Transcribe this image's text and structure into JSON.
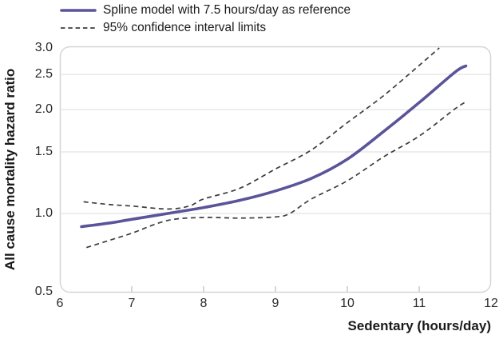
{
  "legend": {
    "items": [
      {
        "label": "Spline model with 7.5 hours/day as reference",
        "swatch": "solid-line"
      },
      {
        "label": "95% confidence interval limits",
        "swatch": "dashed-line"
      }
    ]
  },
  "colors": {
    "spline": "#5a5499",
    "ci": "#3d3d3d",
    "grid": "#e3e3e3",
    "border": "#d6d6d6",
    "tick": "#c9c9c9",
    "text": "#1a1a1a",
    "axis_text": "#2a2a2a",
    "background": "#ffffff"
  },
  "y_axis": {
    "title": "All cause mortality hazard ratio",
    "ticks": [
      "3.0",
      "2.5",
      "2.0",
      "1.5",
      "1.0",
      "0.5"
    ]
  },
  "x_axis": {
    "title": "Sedentary (hours/day)",
    "ticks": [
      "6",
      "7",
      "8",
      "9",
      "10",
      "11",
      "12"
    ]
  },
  "chart_data": {
    "type": "line",
    "title": "",
    "xlabel": "Sedentary (hours/day)",
    "ylabel": "All cause mortality hazard ratio",
    "xlim": [
      6,
      12
    ],
    "ylim": [
      0.5,
      3.0
    ],
    "x_ticks": [
      6,
      7,
      8,
      9,
      10,
      11,
      12
    ],
    "y_ticks": [
      3.0,
      2.5,
      2.0,
      1.5,
      1.0,
      0.5
    ],
    "y_scale": "log-like (compressed toward 0.5)",
    "grid": "horizontal gridlines only",
    "legend_position": "top-left",
    "reference_point": {
      "x": 7.5,
      "y": 1.0
    },
    "series": [
      {
        "name": "Spline model with 7.5 hours/day as reference",
        "style": "solid",
        "x": [
          6.3,
          6.7,
          7.0,
          7.5,
          8.0,
          8.5,
          9.0,
          9.5,
          10.0,
          10.5,
          11.0,
          11.5,
          11.65
        ],
        "y": [
          0.89,
          0.92,
          0.95,
          1.0,
          1.04,
          1.09,
          1.16,
          1.26,
          1.43,
          1.72,
          2.09,
          2.54,
          2.65
        ]
      },
      {
        "name": "95% CI upper limit",
        "style": "dashed",
        "x": [
          6.33,
          6.7,
          7.0,
          7.5,
          7.8,
          8.0,
          8.5,
          9.0,
          9.5,
          10.0,
          10.5,
          11.0,
          11.28
        ],
        "y": [
          1.08,
          1.06,
          1.05,
          1.03,
          1.05,
          1.1,
          1.18,
          1.34,
          1.52,
          1.83,
          2.18,
          2.66,
          3.0
        ]
      },
      {
        "name": "95% CI lower limit",
        "style": "dashed",
        "x": [
          6.37,
          6.7,
          7.0,
          7.5,
          8.0,
          8.5,
          9.0,
          9.2,
          9.5,
          10.0,
          10.5,
          11.0,
          11.5,
          11.65
        ],
        "y": [
          0.74,
          0.79,
          0.84,
          0.94,
          0.965,
          0.96,
          0.97,
          1.0,
          1.1,
          1.24,
          1.45,
          1.67,
          2.01,
          2.1
        ]
      }
    ]
  }
}
